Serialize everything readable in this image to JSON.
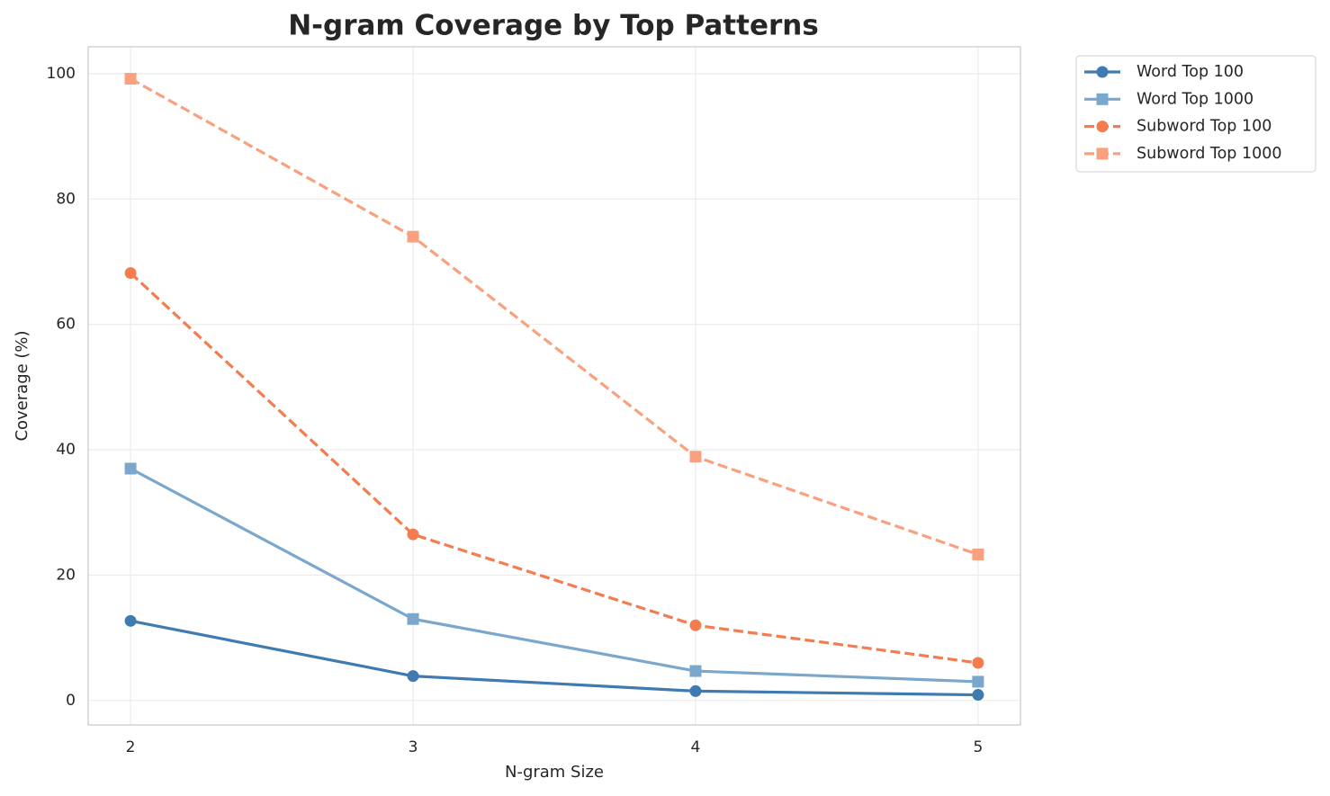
{
  "chart_data": {
    "type": "line",
    "title": "N-gram Coverage by Top Patterns",
    "xlabel": "N-gram Size",
    "ylabel": "Coverage (%)",
    "x": [
      2,
      3,
      4,
      5
    ],
    "series": [
      {
        "name": "Word Top 100",
        "color": "#3f7ab0",
        "marker": "circle",
        "linestyle": "solid",
        "values": [
          12.7,
          3.9,
          1.5,
          0.9
        ]
      },
      {
        "name": "Word Top 1000",
        "color": "#7aa7cb",
        "marker": "square",
        "linestyle": "solid",
        "values": [
          37,
          13,
          4.7,
          3.0
        ]
      },
      {
        "name": "Subword Top 100",
        "color": "#f47c4f",
        "marker": "circle",
        "linestyle": "dashed",
        "values": [
          68.2,
          26.5,
          12,
          6
        ]
      },
      {
        "name": "Subword Top 1000",
        "color": "#f9a17f",
        "marker": "square",
        "linestyle": "dashed",
        "values": [
          99.2,
          74,
          38.9,
          23.3
        ]
      }
    ],
    "xlim": [
      1.85,
      5.15
    ],
    "ylim": [
      -3.9,
      104.3
    ],
    "xticks": [
      2,
      3,
      4,
      5
    ],
    "yticks": [
      0,
      20,
      40,
      60,
      80,
      100
    ],
    "grid": true,
    "legend": "outside"
  }
}
